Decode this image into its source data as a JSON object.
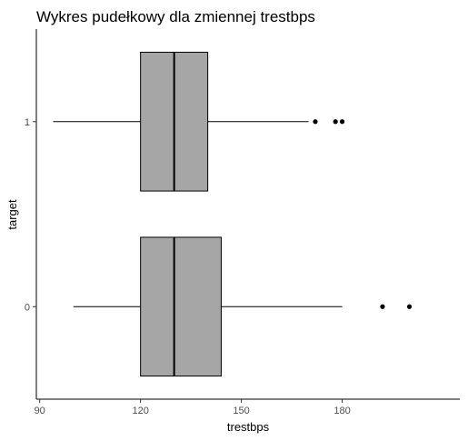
{
  "chart_data": {
    "type": "boxplot",
    "orientation": "horizontal",
    "title": "Wykres pudełkowy dla zmiennej trestbps",
    "xlabel": "trestbps",
    "ylabel": "target",
    "xlim": [
      89,
      215
    ],
    "x_ticks": [
      90,
      120,
      150,
      180
    ],
    "categories": [
      "0",
      "1"
    ],
    "boxes": [
      {
        "category": "0",
        "whisker_low": 100,
        "q1": 120,
        "median": 130,
        "q3": 144,
        "whisker_high": 180,
        "outliers": [
          192,
          200
        ]
      },
      {
        "category": "1",
        "whisker_low": 94,
        "q1": 120,
        "median": 130,
        "q3": 140,
        "whisker_high": 170,
        "outliers": [
          172,
          178,
          180
        ]
      }
    ],
    "box_fill": "#a6a6a6",
    "line_color": "#000000",
    "grid": false,
    "legend": "none"
  }
}
